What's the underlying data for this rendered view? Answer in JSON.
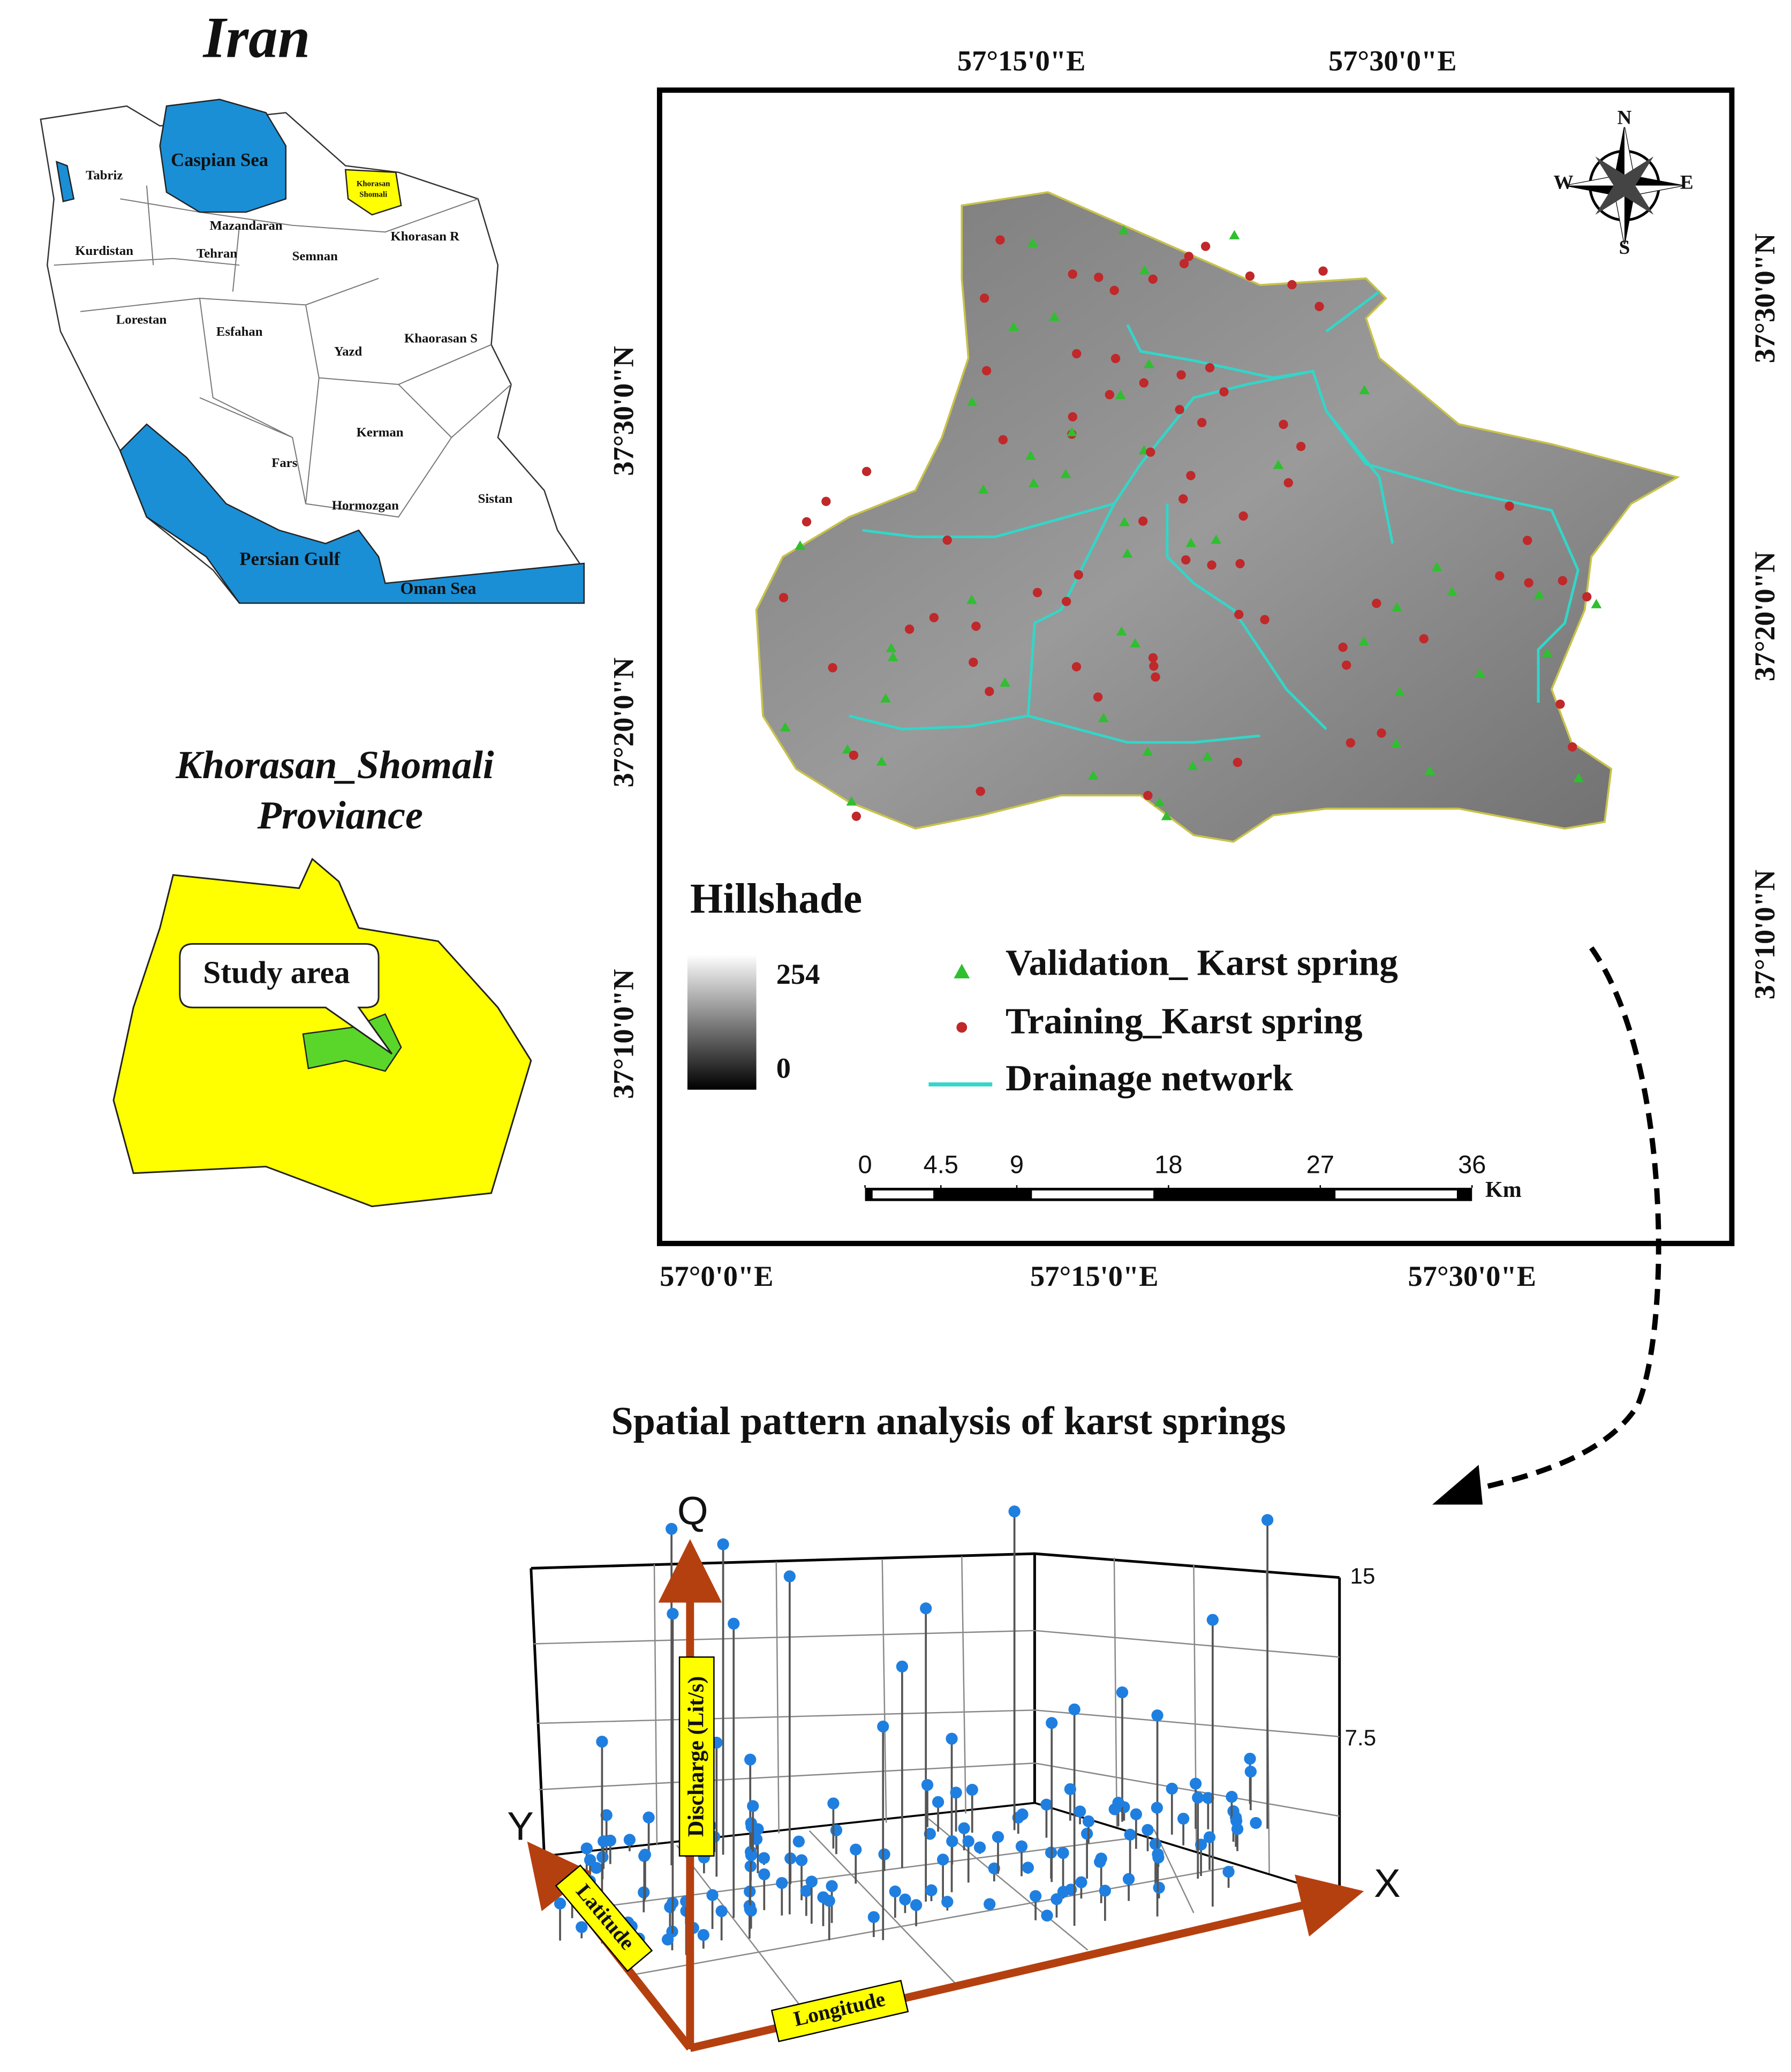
{
  "inset_iran": {
    "title": "Iran",
    "labels": [
      "Caspian Sea",
      "Tabriz",
      "Kurdistan",
      "Mazandaran",
      "Tehran",
      "Semnan",
      "Khorasan R",
      "Khorasan",
      "Shomali",
      "Lorestan",
      "Esfahan",
      "Yazd",
      "Khaorasan S",
      "Kerman",
      "Fars",
      "Hormozgan",
      "Sistan",
      "Persian Gulf",
      "Oman Sea"
    ]
  },
  "inset_province": {
    "title": [
      "Khorasan_Shomali",
      "Proviance"
    ],
    "callout": "Study area"
  },
  "map": {
    "top_labels": [
      "57°15'0\"E",
      "57°30'0\"E"
    ],
    "bottom_labels": [
      "57°0'0\"E",
      "57°15'0\"E",
      "57°30'0\"E"
    ],
    "left_labels": [
      "37°30'0\"N",
      "37°20'0\"N",
      "37°10'0\"N"
    ],
    "right_labels": [
      "37°30'0\"N",
      "37°20'0\"N",
      "37°10'0\"N"
    ],
    "compass": [
      "N",
      "S",
      "W",
      "E"
    ],
    "legend": {
      "title": "Hillshade",
      "ramp_max": "254",
      "ramp_min": "0",
      "items": [
        "Validation_ Karst spring",
        "Training_Karst spring",
        "Drainage  network"
      ]
    },
    "scale_bar": {
      "ticks": [
        0,
        4.5,
        9,
        18,
        27,
        36
      ],
      "unit": "Km"
    }
  },
  "plot3d": {
    "title": "Spatial pattern analysis of karst springs",
    "axis_q": "Q",
    "axis_y": "Y",
    "axis_x": "X",
    "discharge": "Discharge (Lit/s)",
    "latitude": "Latitude",
    "longitude": "Longitude",
    "ticks": [
      "15",
      "7.5"
    ]
  }
}
